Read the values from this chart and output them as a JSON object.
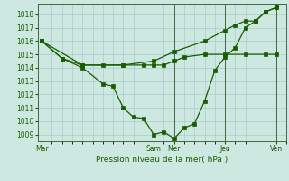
{
  "background_color": "#cce8e0",
  "grid_color": "#aacccc",
  "line_color": "#1a5c00",
  "marker_color": "#1a5c00",
  "xlabel": "Pression niveau de la mer( hPa )",
  "ylim": [
    1008.5,
    1018.8
  ],
  "yticks": [
    1009,
    1010,
    1011,
    1012,
    1013,
    1014,
    1015,
    1016,
    1017,
    1018
  ],
  "day_labels": [
    "Mar",
    "Sam",
    "Mer",
    "Jeu",
    "Ven"
  ],
  "day_positions": [
    0,
    5.5,
    6.5,
    9,
    11.5
  ],
  "xlim": [
    -0.2,
    12.0
  ],
  "series_flat_x": [
    0,
    1,
    2,
    3,
    4,
    5,
    5.5,
    6,
    6.5,
    7,
    8,
    9,
    10,
    11,
    11.5
  ],
  "series_flat_y": [
    1016,
    1014.7,
    1014.2,
    1014.2,
    1014.2,
    1014.2,
    1014.2,
    1014.2,
    1014.5,
    1014.8,
    1015.0,
    1015.0,
    1015.0,
    1015.0,
    1015.0
  ],
  "series_rise_x": [
    0,
    2,
    4,
    5.5,
    6.5,
    8,
    9,
    9.5,
    10,
    10.5,
    11,
    11.5
  ],
  "series_rise_y": [
    1016,
    1014.2,
    1014.2,
    1014.5,
    1015.2,
    1016.0,
    1016.8,
    1017.2,
    1017.5,
    1017.5,
    1018.2,
    1018.5
  ],
  "series_dip_x": [
    0,
    1,
    2,
    3,
    3.5,
    4,
    4.5,
    5,
    5.5,
    6,
    6.5,
    7,
    7.5,
    8,
    8.5,
    9,
    9.5,
    10,
    10.5,
    11,
    11.5
  ],
  "series_dip_y": [
    1016,
    1014.7,
    1014.0,
    1012.8,
    1012.6,
    1011.0,
    1010.3,
    1010.2,
    1009.0,
    1009.2,
    1008.7,
    1009.5,
    1009.8,
    1011.5,
    1013.8,
    1014.8,
    1015.5,
    1017.0,
    1017.5,
    1018.2,
    1018.5
  ]
}
